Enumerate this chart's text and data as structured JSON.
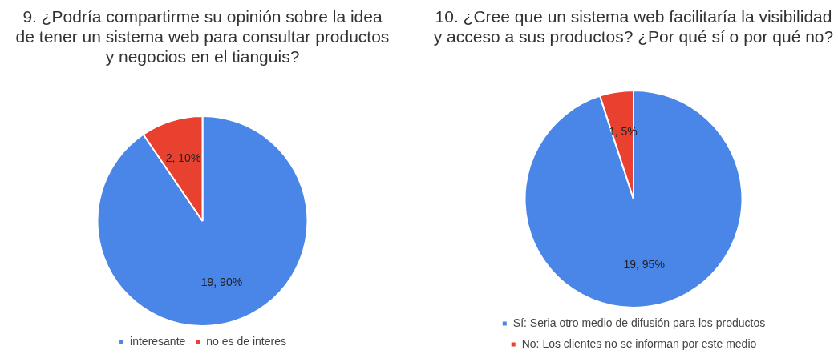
{
  "chart_data": [
    {
      "type": "pie",
      "title": "9. ¿Podría compartirme su opinión sobre la idea de tener un sistema web para consultar productos y negocios en el tianguis?",
      "categories": [
        "interesante",
        "no es de interes"
      ],
      "values": [
        19,
        2
      ],
      "colors": [
        "#4a86e8",
        "#e8412f"
      ],
      "value_labels": [
        "19, 90%",
        "2, 10%"
      ],
      "legend": "bottom"
    },
    {
      "type": "pie",
      "title": "10. ¿Cree que un sistema web facilitaría la visibilidad y acceso a sus productos? ¿Por qué sí o por qué no?",
      "categories": [
        "Sí: Seria otro medio de difusión para los productos",
        "No: Los clientes no se informan por este medio"
      ],
      "values": [
        19,
        1
      ],
      "colors": [
        "#4a86e8",
        "#e8412f"
      ],
      "value_labels": [
        "19, 95%",
        "1, 5%"
      ],
      "legend": "bottom"
    }
  ]
}
